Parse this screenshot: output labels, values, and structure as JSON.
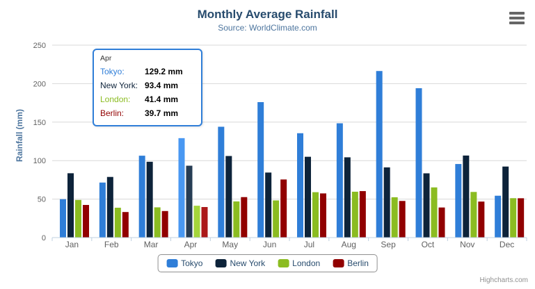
{
  "chart_data": {
    "type": "bar",
    "title": "Monthly Average Rainfall",
    "subtitle": "Source: WorldClimate.com",
    "xlabel": "",
    "ylabel": "Rainfall (mm)",
    "ylim": [
      0,
      250
    ],
    "yticks": [
      0,
      50,
      100,
      150,
      200,
      250
    ],
    "grid": true,
    "legend_position": "bottom",
    "categories": [
      "Jan",
      "Feb",
      "Mar",
      "Apr",
      "May",
      "Jun",
      "Jul",
      "Aug",
      "Sep",
      "Oct",
      "Nov",
      "Dec"
    ],
    "series": [
      {
        "name": "Tokyo",
        "color": "#2f7ed8",
        "values": [
          49.9,
          71.5,
          106.4,
          129.2,
          144.0,
          176.0,
          135.6,
          148.5,
          216.4,
          194.1,
          95.6,
          54.4
        ]
      },
      {
        "name": "New York",
        "color": "#0d233a",
        "values": [
          83.6,
          78.8,
          98.5,
          93.4,
          106.0,
          84.5,
          105.0,
          104.3,
          91.2,
          83.5,
          106.6,
          92.3
        ]
      },
      {
        "name": "London",
        "color": "#8bbc21",
        "values": [
          48.9,
          38.8,
          39.3,
          41.4,
          47.0,
          48.3,
          59.0,
          59.6,
          52.4,
          65.2,
          59.3,
          51.2
        ]
      },
      {
        "name": "Berlin",
        "color": "#910000",
        "values": [
          42.4,
          33.2,
          34.5,
          39.7,
          52.6,
          75.5,
          57.4,
          60.4,
          47.6,
          39.1,
          46.8,
          51.1
        ]
      }
    ]
  },
  "tooltip": {
    "category": "Apr",
    "rows": [
      {
        "label": "Tokyo:",
        "value": "129.2 mm",
        "color": "#2f7ed8"
      },
      {
        "label": "New York:",
        "value": "93.4 mm",
        "color": "#0d233a"
      },
      {
        "label": "London:",
        "value": "41.4 mm",
        "color": "#8bbc21"
      },
      {
        "label": "Berlin:",
        "value": "39.7 mm",
        "color": "#910000"
      }
    ]
  },
  "export_menu": {
    "icon": "hamburger-icon"
  },
  "credits": {
    "label": "Highcharts.com"
  },
  "colors": {
    "title": "#274b6d",
    "subtitle": "#4d759e",
    "axis_labels": "#606060",
    "gridline": "#d8d8d8",
    "axis_line": "#c0d0e0",
    "legend_border": "#909090",
    "tooltip_border": "#2f7ed8"
  }
}
